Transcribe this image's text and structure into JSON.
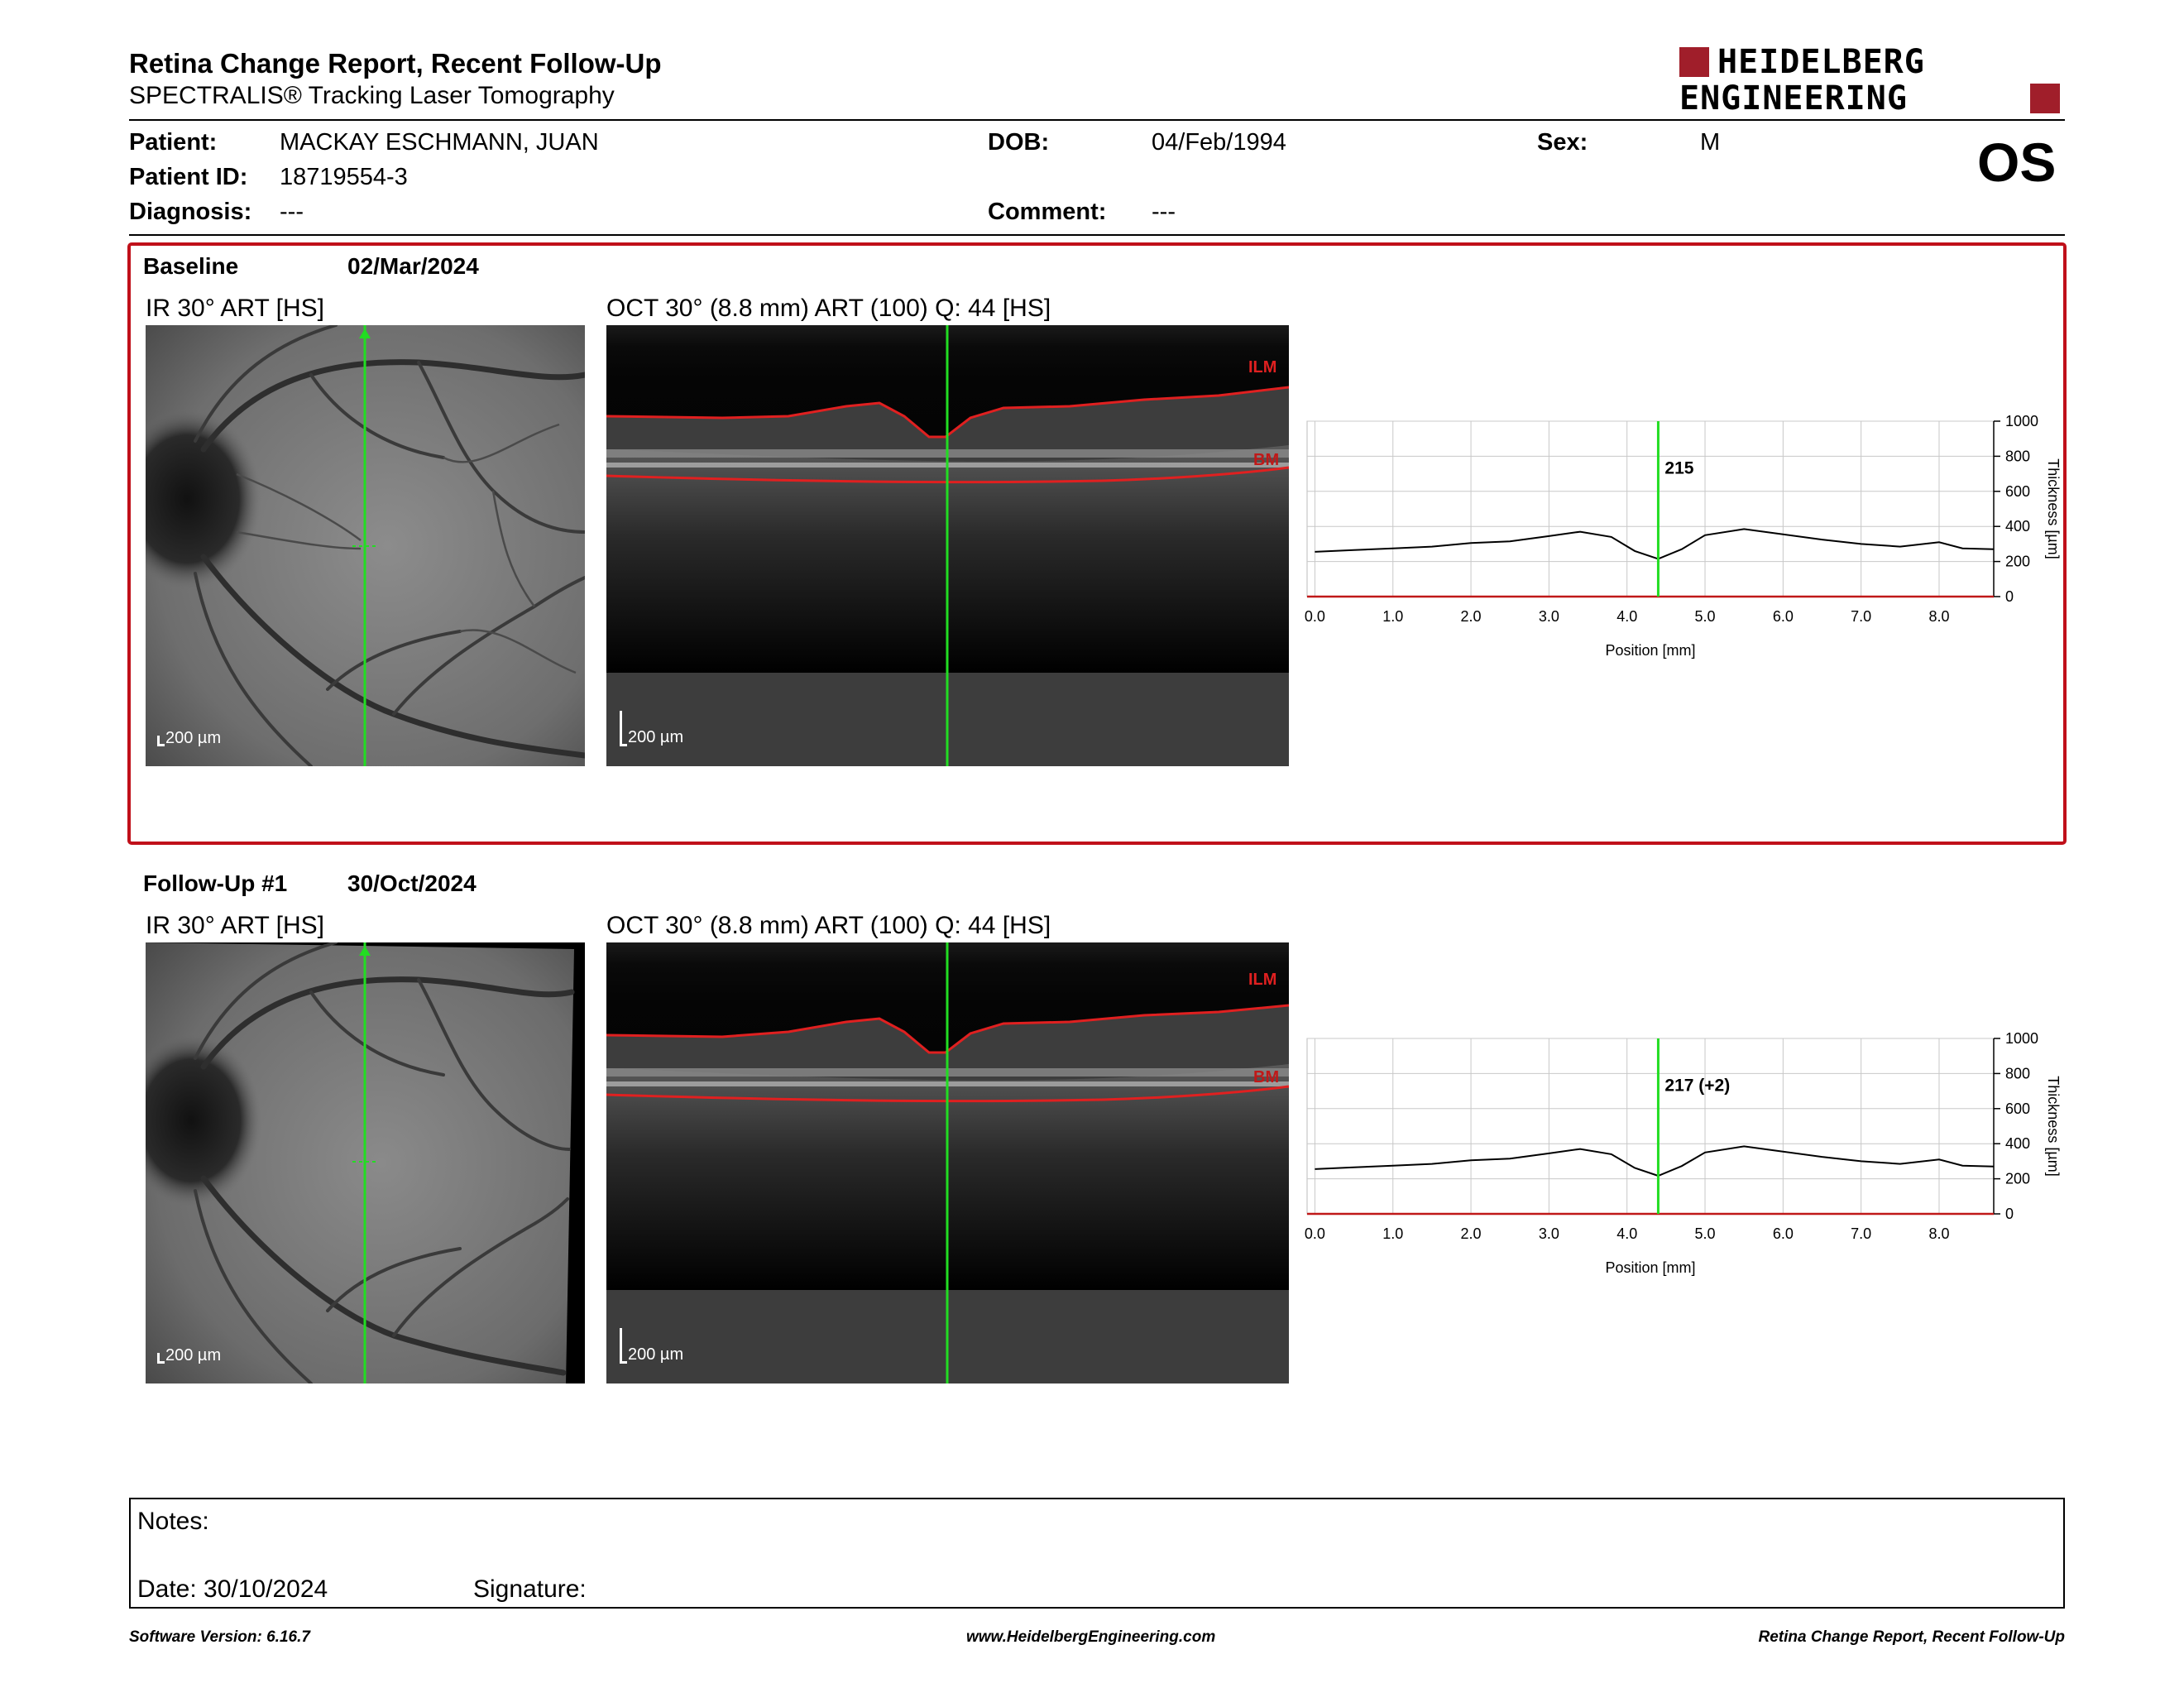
{
  "header": {
    "title": "Retina Change Report, Recent Follow-Up",
    "subtitle": "SPECTRALIS® Tracking Laser Tomography",
    "logo_line1": "HEIDELBERG",
    "logo_line2": "ENGINEERING",
    "eye": "OS"
  },
  "patient": {
    "name_label": "Patient:",
    "name": "MACKAY ESCHMANN, JUAN",
    "id_label": "Patient ID:",
    "id": "18719554-3",
    "diagnosis_label": "Diagnosis:",
    "diagnosis": "---",
    "dob_label": "DOB:",
    "dob": "04/Feb/1994",
    "comment_label": "Comment:",
    "comment": "---",
    "sex_label": "Sex:",
    "sex": "M"
  },
  "exams": [
    {
      "label": "Baseline",
      "date": "02/Mar/2024",
      "ir_title": "IR 30° ART [HS]",
      "oct_title": "OCT 30° (8.8 mm) ART (100) Q: 44 [HS]",
      "scale": "200 µm",
      "ilm": "ILM",
      "bm": "BM",
      "marker_value": "215"
    },
    {
      "label": "Follow-Up #1",
      "date": "30/Oct/2024",
      "ir_title": "IR 30° ART [HS]",
      "oct_title": "OCT 30° (8.8 mm) ART (100) Q: 44 [HS]",
      "scale": "200 µm",
      "ilm": "ILM",
      "bm": "BM",
      "marker_value": "217 (+2)"
    }
  ],
  "chart_data": [
    {
      "type": "line",
      "xlabel": "Position [mm]",
      "ylabel": "Thickness [µm]",
      "xlim": [
        -0.1,
        8.7
      ],
      "ylim": [
        0,
        1000
      ],
      "xticks": [
        "0.0",
        "1.0",
        "2.0",
        "3.0",
        "4.0",
        "5.0",
        "6.0",
        "7.0",
        "8.0"
      ],
      "yticks": [
        "0",
        "200",
        "400",
        "600",
        "800",
        "1000"
      ],
      "grid": true,
      "marker_x": 4.4,
      "marker_label": "215",
      "x": [
        0.0,
        0.5,
        1.0,
        1.5,
        2.0,
        2.5,
        3.0,
        3.4,
        3.8,
        4.1,
        4.4,
        4.7,
        5.0,
        5.5,
        6.0,
        6.5,
        7.0,
        7.5,
        8.0,
        8.3,
        8.7
      ],
      "y": [
        255,
        265,
        275,
        285,
        305,
        315,
        345,
        370,
        340,
        260,
        215,
        270,
        350,
        385,
        355,
        325,
        300,
        285,
        310,
        275,
        270
      ]
    },
    {
      "type": "line",
      "xlabel": "Position [mm]",
      "ylabel": "Thickness [µm]",
      "xlim": [
        -0.1,
        8.7
      ],
      "ylim": [
        0,
        1000
      ],
      "xticks": [
        "0.0",
        "1.0",
        "2.0",
        "3.0",
        "4.0",
        "5.0",
        "6.0",
        "7.0",
        "8.0"
      ],
      "yticks": [
        "0",
        "200",
        "400",
        "600",
        "800",
        "1000"
      ],
      "grid": true,
      "marker_x": 4.4,
      "marker_label": "217 (+2)",
      "x": [
        0.0,
        0.5,
        1.0,
        1.5,
        2.0,
        2.5,
        3.0,
        3.4,
        3.8,
        4.1,
        4.4,
        4.7,
        5.0,
        5.5,
        6.0,
        6.5,
        7.0,
        7.5,
        8.0,
        8.3,
        8.7
      ],
      "y": [
        255,
        265,
        275,
        285,
        305,
        315,
        345,
        370,
        340,
        262,
        217,
        272,
        350,
        385,
        355,
        325,
        300,
        285,
        310,
        275,
        270
      ]
    }
  ],
  "notes": {
    "label": "Notes:",
    "date": "Date: 30/10/2024",
    "signature": "Signature:"
  },
  "footer": {
    "left": "Software Version: 6.16.7",
    "center": "www.HeidelbergEngineering.com",
    "right": "Retina Change Report, Recent Follow-Up"
  },
  "colors": {
    "accent": "#c0101a",
    "marker": "#22dd22",
    "ilm": "#e02020"
  }
}
